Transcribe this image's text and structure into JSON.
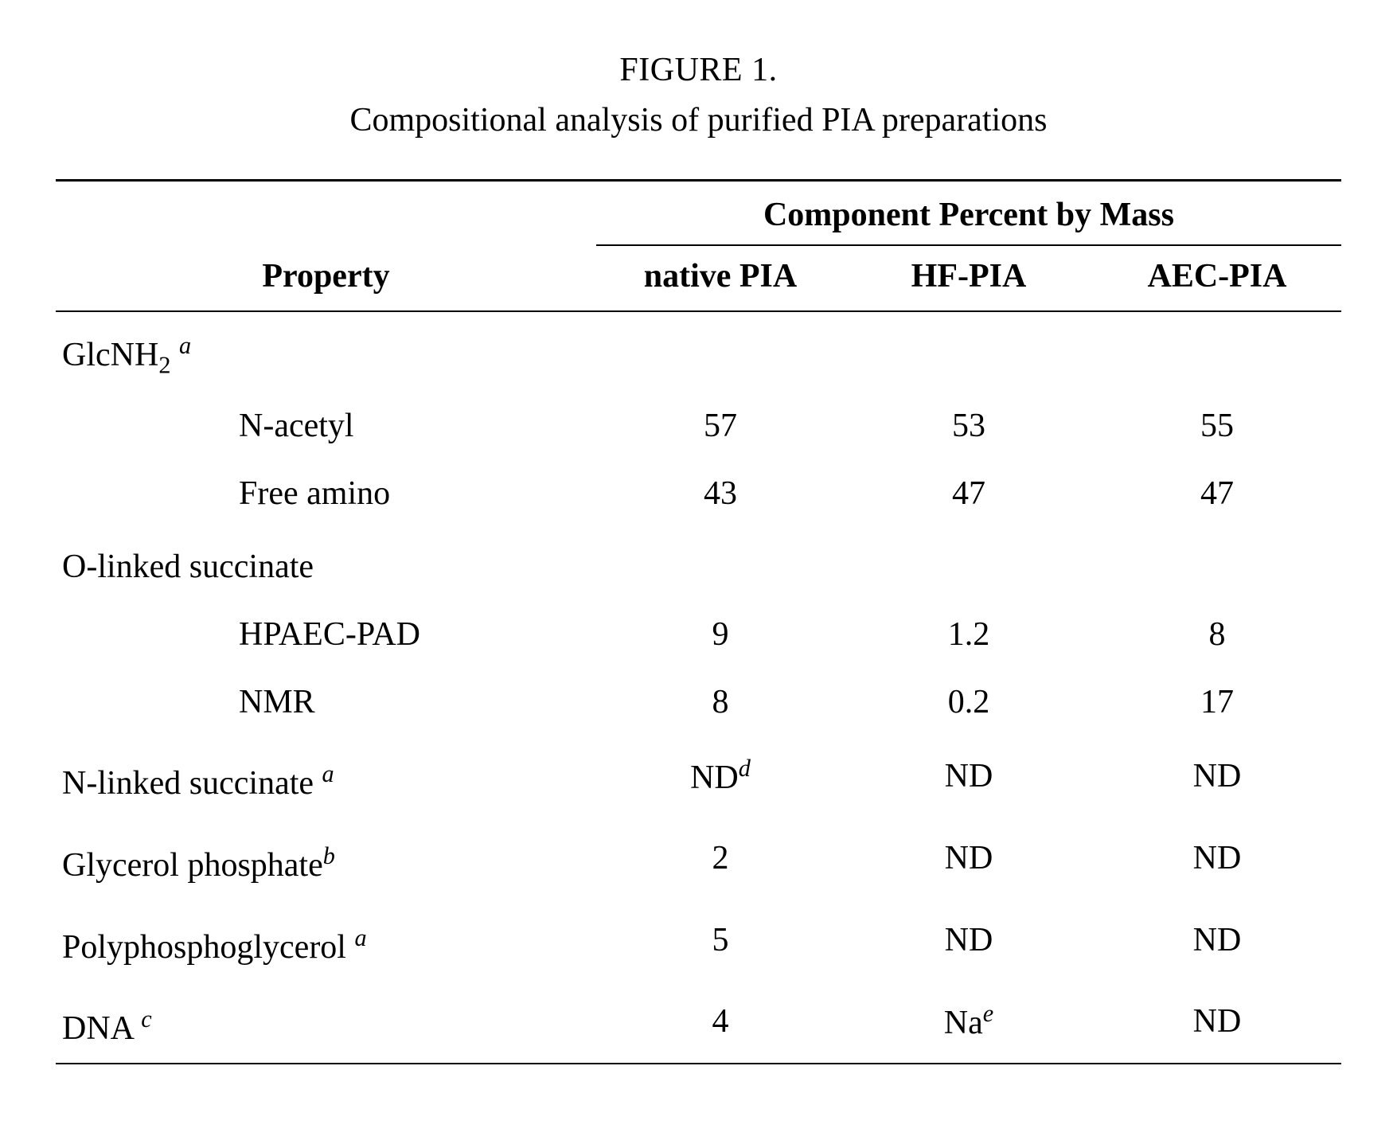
{
  "figure_label": "FIGURE 1.",
  "caption": "Compositional analysis of purified PIA preparations",
  "spanning_header": "Component Percent by Mass",
  "columns": {
    "property": "Property",
    "c1": "native PIA",
    "c2": "HF-PIA",
    "c3": "AEC-PIA"
  },
  "groups": {
    "glcnh2": {
      "label_prefix": "GlcNH",
      "label_sub": "2",
      "note": "a",
      "rows": {
        "n_acetyl": {
          "label": "N-acetyl",
          "c1": "57",
          "c2": "53",
          "c3": "55"
        },
        "free_amino": {
          "label": "Free amino",
          "c1": "43",
          "c2": "47",
          "c3": "47"
        }
      }
    },
    "o_succinate": {
      "label": "O-linked succinate",
      "rows": {
        "hpaec": {
          "label": "HPAEC-PAD",
          "c1": "9",
          "c2": "1.2",
          "c3": "8"
        },
        "nmr": {
          "label": "NMR",
          "c1": "8",
          "c2": "0.2",
          "c3": "17"
        }
      }
    }
  },
  "rows": {
    "n_succinate": {
      "label": "N-linked succinate",
      "note": "a",
      "c1_prefix": "ND",
      "c1_note": "d",
      "c2": "ND",
      "c3": "ND"
    },
    "glycerol_phosphate": {
      "label": "Glycerol phosphate",
      "note": "b",
      "c1": "2",
      "c2": "ND",
      "c3": "ND"
    },
    "polyphosphoglycerol": {
      "label": "Polyphosphoglycerol",
      "note": "a",
      "c1": "5",
      "c2": "ND",
      "c3": "ND"
    },
    "dna": {
      "label": "DNA",
      "note": "c",
      "c1": "4",
      "c2_prefix": "Na",
      "c2_note": "e",
      "c3": "ND"
    }
  }
}
